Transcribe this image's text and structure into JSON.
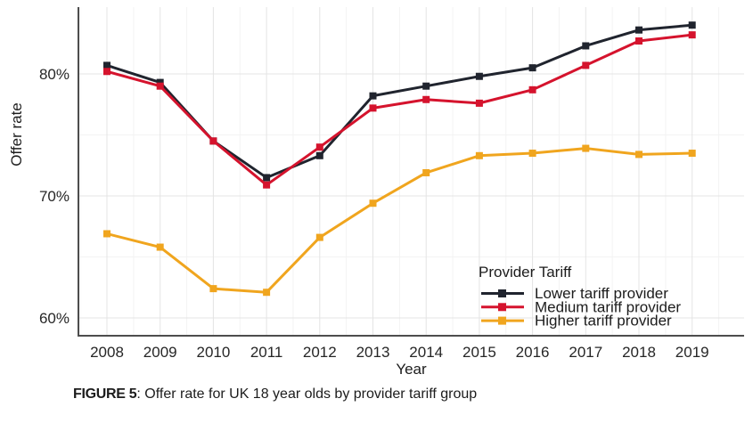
{
  "figure": {
    "caption_label": "FIGURE 5",
    "caption_text": ": Offer rate for UK 18 year olds by provider tariff group"
  },
  "chart_data": {
    "type": "line",
    "title": "",
    "xlabel": "Year",
    "ylabel": "Offer rate",
    "x": [
      2008,
      2009,
      2010,
      2011,
      2012,
      2013,
      2014,
      2015,
      2016,
      2017,
      2018,
      2019
    ],
    "x_tick_labels": [
      "2008",
      "2009",
      "2010",
      "2011",
      "2012",
      "2013",
      "2014",
      "2015",
      "2016",
      "2017",
      "2018",
      "2019"
    ],
    "y_ticks": [
      {
        "value": 80,
        "label": "80%"
      },
      {
        "value": 70,
        "label": "70%"
      },
      {
        "value": 60,
        "label": "60%"
      }
    ],
    "ylim": [
      58.5,
      85.5
    ],
    "grid": true,
    "legend": {
      "title": "Provider Tariff",
      "position": "inside-bottom-right"
    },
    "series": [
      {
        "name": "Lower tariff provider",
        "color": "#20242e",
        "marker": "square",
        "values": [
          80.7,
          79.3,
          74.5,
          71.5,
          73.3,
          78.2,
          79.0,
          79.8,
          80.5,
          82.3,
          83.6,
          84.0
        ]
      },
      {
        "name": "Medium tariff provider",
        "color": "#d5132d",
        "marker": "square",
        "values": [
          80.2,
          79.0,
          74.5,
          70.9,
          74.0,
          77.2,
          77.9,
          77.6,
          78.7,
          80.7,
          82.7,
          83.2
        ]
      },
      {
        "name": "Higher tariff provider",
        "color": "#f0a51e",
        "marker": "square",
        "values": [
          66.9,
          65.8,
          62.4,
          62.1,
          66.6,
          69.4,
          71.9,
          73.3,
          73.5,
          73.9,
          73.4,
          73.5
        ]
      }
    ]
  },
  "colors": {
    "axis_line": "#4d4d4d",
    "grid_major": "#e4e4e4",
    "grid_minor": "#f3f3f3",
    "tick_text": "#262626",
    "label_text": "#1c1c1c"
  }
}
